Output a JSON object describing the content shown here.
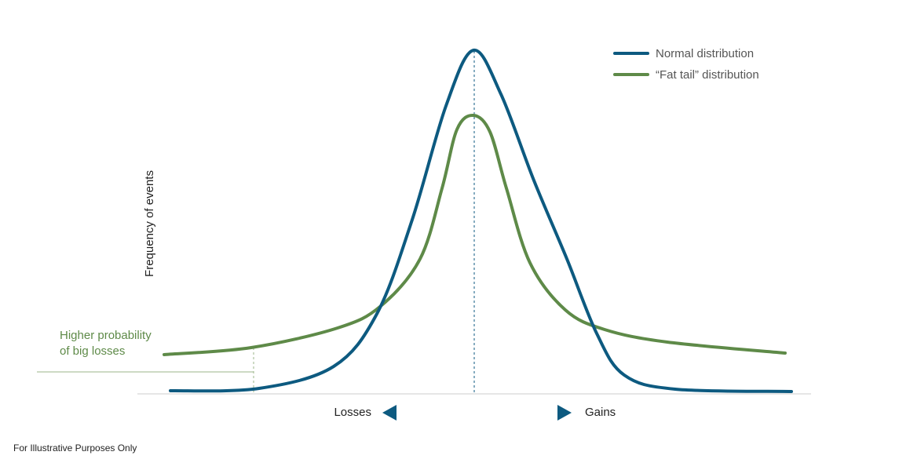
{
  "legend": {
    "items": [
      "Normal distribution",
      "“Fat tail” distribution"
    ]
  },
  "axis": {
    "y_label": "Frequency of events",
    "x_left": "Losses",
    "x_right": "Gains"
  },
  "annotation": {
    "lines": [
      "Higher probability",
      "of big losses"
    ]
  },
  "footnote": "For Illustrative Purposes Only"
}
